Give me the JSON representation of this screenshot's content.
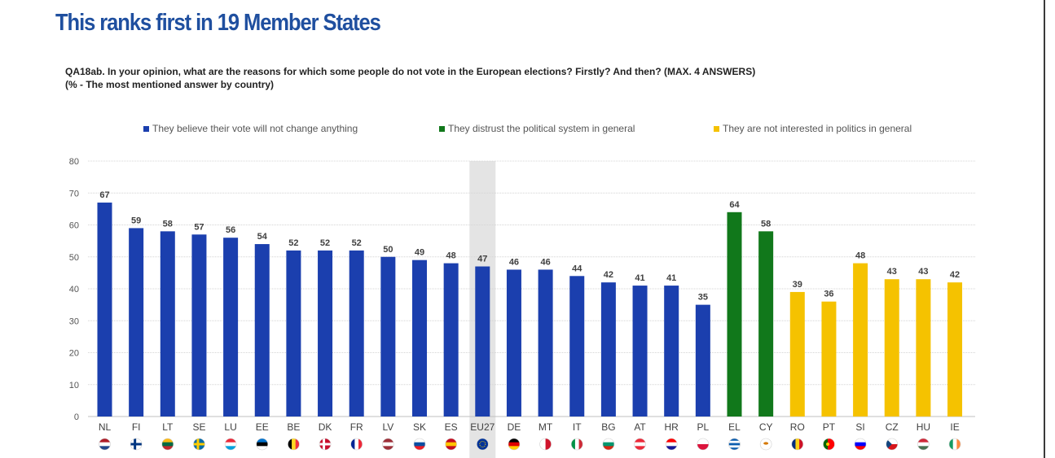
{
  "page": {
    "title": "This ranks first in 19 Member States",
    "question_line1": "QA18ab. In your opinion, what are the reasons for which some people do not vote in the European elections? Firstly? And then? (MAX. 4 ANSWERS)",
    "question_line2": "(% - The most mentioned answer by country)"
  },
  "legend": [
    {
      "label": "They believe their vote will not change anything",
      "color": "#1b3fae"
    },
    {
      "label": "They distrust the political system in general",
      "color": "#11781b"
    },
    {
      "label": "They are not interested in politics in general",
      "color": "#f5c200"
    }
  ],
  "chart_data": {
    "type": "bar",
    "categories": [
      "NL",
      "FI",
      "LT",
      "SE",
      "LU",
      "EE",
      "BE",
      "DK",
      "FR",
      "LV",
      "SK",
      "ES",
      "EU27",
      "DE",
      "MT",
      "IT",
      "BG",
      "AT",
      "HR",
      "PL",
      "EL",
      "CY",
      "RO",
      "PT",
      "SI",
      "CZ",
      "HU",
      "IE"
    ],
    "values": [
      67,
      59,
      58,
      57,
      56,
      54,
      52,
      52,
      52,
      50,
      49,
      48,
      47,
      46,
      46,
      44,
      42,
      41,
      41,
      35,
      64,
      58,
      39,
      36,
      48,
      43,
      43,
      42
    ],
    "series_index": [
      0,
      0,
      0,
      0,
      0,
      0,
      0,
      0,
      0,
      0,
      0,
      0,
      0,
      0,
      0,
      0,
      0,
      0,
      0,
      0,
      1,
      1,
      2,
      2,
      2,
      2,
      2,
      2
    ],
    "highlighted_category": "EU27",
    "ylim": [
      0,
      80
    ],
    "yticks": [
      0,
      10,
      20,
      30,
      40,
      50,
      60,
      70,
      80
    ],
    "grid": true,
    "legend_position": "top",
    "data_labels": true,
    "flags": [
      {
        "code": "NL",
        "icon": "flag-nl-icon",
        "colors": [
          "#ae1c28",
          "#ffffff",
          "#21468b"
        ],
        "orient": "h"
      },
      {
        "code": "FI",
        "icon": "flag-fi-icon",
        "colors": [
          "#ffffff",
          "#003580"
        ],
        "orient": "nordic"
      },
      {
        "code": "LT",
        "icon": "flag-lt-icon",
        "colors": [
          "#fdb913",
          "#006a44",
          "#c1272d"
        ],
        "orient": "h"
      },
      {
        "code": "SE",
        "icon": "flag-se-icon",
        "colors": [
          "#006aa7",
          "#fecc00"
        ],
        "orient": "nordic"
      },
      {
        "code": "LU",
        "icon": "flag-lu-icon",
        "colors": [
          "#ed2939",
          "#ffffff",
          "#00a1de"
        ],
        "orient": "h"
      },
      {
        "code": "EE",
        "icon": "flag-ee-icon",
        "colors": [
          "#0072ce",
          "#000000",
          "#ffffff"
        ],
        "orient": "h"
      },
      {
        "code": "BE",
        "icon": "flag-be-icon",
        "colors": [
          "#000000",
          "#fdda24",
          "#ef3340"
        ],
        "orient": "v"
      },
      {
        "code": "DK",
        "icon": "flag-dk-icon",
        "colors": [
          "#c8102e",
          "#ffffff"
        ],
        "orient": "nordic"
      },
      {
        "code": "FR",
        "icon": "flag-fr-icon",
        "colors": [
          "#002395",
          "#ffffff",
          "#ed2939"
        ],
        "orient": "v"
      },
      {
        "code": "LV",
        "icon": "flag-lv-icon",
        "colors": [
          "#9e3039",
          "#ffffff",
          "#9e3039"
        ],
        "orient": "h"
      },
      {
        "code": "SK",
        "icon": "flag-sk-icon",
        "colors": [
          "#ffffff",
          "#0b4ea2",
          "#ee1c25"
        ],
        "orient": "h"
      },
      {
        "code": "ES",
        "icon": "flag-es-icon",
        "colors": [
          "#c60b1e",
          "#ffc400",
          "#c60b1e"
        ],
        "orient": "h"
      },
      {
        "code": "EU27",
        "icon": "flag-eu-icon",
        "colors": [
          "#003399",
          "#ffcc00"
        ],
        "orient": "eu"
      },
      {
        "code": "DE",
        "icon": "flag-de-icon",
        "colors": [
          "#000000",
          "#dd0000",
          "#ffce00"
        ],
        "orient": "h"
      },
      {
        "code": "MT",
        "icon": "flag-mt-icon",
        "colors": [
          "#ffffff",
          "#cf142b"
        ],
        "orient": "v2"
      },
      {
        "code": "IT",
        "icon": "flag-it-icon",
        "colors": [
          "#009246",
          "#ffffff",
          "#ce2b37"
        ],
        "orient": "v"
      },
      {
        "code": "BG",
        "icon": "flag-bg-icon",
        "colors": [
          "#ffffff",
          "#00966e",
          "#d62612"
        ],
        "orient": "h"
      },
      {
        "code": "AT",
        "icon": "flag-at-icon",
        "colors": [
          "#ed2939",
          "#ffffff",
          "#ed2939"
        ],
        "orient": "h"
      },
      {
        "code": "HR",
        "icon": "flag-hr-icon",
        "colors": [
          "#ff0000",
          "#ffffff",
          "#171796"
        ],
        "orient": "h"
      },
      {
        "code": "PL",
        "icon": "flag-pl-icon",
        "colors": [
          "#ffffff",
          "#dc143c"
        ],
        "orient": "h2"
      },
      {
        "code": "EL",
        "icon": "flag-gr-icon",
        "colors": [
          "#0d5eaf",
          "#ffffff",
          "#0d5eaf",
          "#ffffff",
          "#0d5eaf"
        ],
        "orient": "h"
      },
      {
        "code": "CY",
        "icon": "flag-cy-icon",
        "colors": [
          "#ffffff",
          "#d57800"
        ],
        "orient": "cy"
      },
      {
        "code": "RO",
        "icon": "flag-ro-icon",
        "colors": [
          "#002b7f",
          "#fcd116",
          "#ce1126"
        ],
        "orient": "v"
      },
      {
        "code": "PT",
        "icon": "flag-pt-icon",
        "colors": [
          "#006600",
          "#ff0000"
        ],
        "orient": "pt"
      },
      {
        "code": "SI",
        "icon": "flag-si-icon",
        "colors": [
          "#ffffff",
          "#0000ff",
          "#ff0000"
        ],
        "orient": "h"
      },
      {
        "code": "CZ",
        "icon": "flag-cz-icon",
        "colors": [
          "#ffffff",
          "#d7141a",
          "#11457e"
        ],
        "orient": "cz"
      },
      {
        "code": "HU",
        "icon": "flag-hu-icon",
        "colors": [
          "#ce2939",
          "#ffffff",
          "#477050"
        ],
        "orient": "h"
      },
      {
        "code": "IE",
        "icon": "flag-ie-icon",
        "colors": [
          "#169b62",
          "#ffffff",
          "#ff883e"
        ],
        "orient": "v"
      }
    ]
  }
}
